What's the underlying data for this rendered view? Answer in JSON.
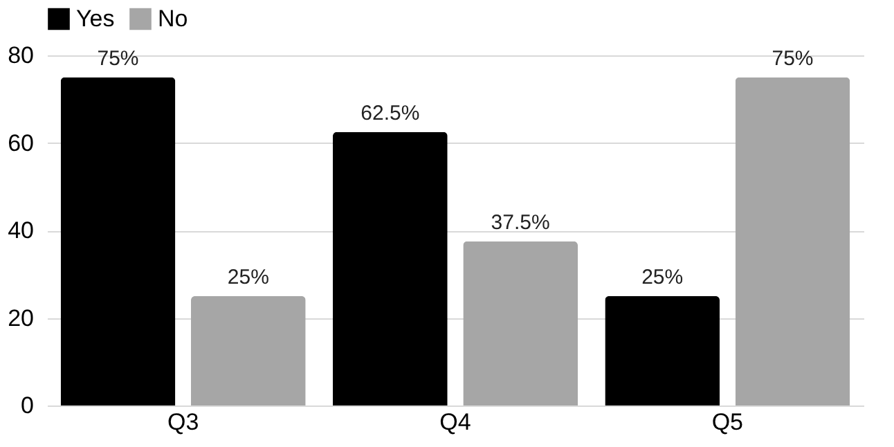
{
  "chart_data": {
    "type": "bar",
    "categories": [
      "Q3",
      "Q4",
      "Q5"
    ],
    "series": [
      {
        "name": "Yes",
        "color": "#000000",
        "values": [
          75,
          62.5,
          25
        ],
        "value_labels": [
          "75%",
          "62.5%",
          "25%"
        ]
      },
      {
        "name": "No",
        "color": "#a6a6a6",
        "values": [
          25,
          37.5,
          75
        ],
        "value_labels": [
          "25%",
          "37.5%",
          "75%"
        ]
      }
    ],
    "ylim": [
      0,
      80
    ],
    "yticks": [
      0,
      20,
      40,
      60,
      80
    ],
    "grid": "y",
    "legend": "top"
  }
}
